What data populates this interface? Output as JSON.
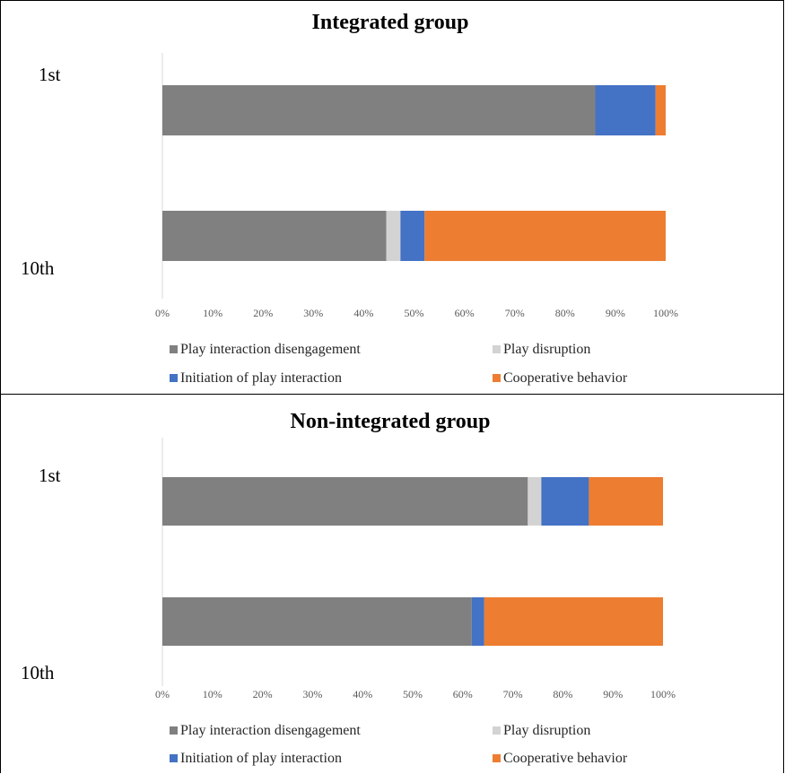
{
  "chart_data": [
    {
      "type": "bar",
      "orientation": "horizontal",
      "stacked": "percent",
      "title": "Integrated group",
      "categories": [
        "1st",
        "10th"
      ],
      "series": [
        {
          "name": "Play interaction disengagement",
          "color": "#808080",
          "values": [
            86,
            44.5
          ]
        },
        {
          "name": "Play disruption",
          "color": "#d3d3d3",
          "values": [
            0,
            2.8
          ]
        },
        {
          "name": "Initiation of play interaction",
          "color": "#4472c4",
          "values": [
            12,
            4.8
          ]
        },
        {
          "name": "Cooperative behavior",
          "color": "#ed7d31",
          "values": [
            2,
            47.9
          ]
        }
      ],
      "xlim": [
        0,
        100
      ],
      "xticks": [
        "0%",
        "10%",
        "20%",
        "30%",
        "40%",
        "50%",
        "60%",
        "70%",
        "80%",
        "90%",
        "100%"
      ],
      "grid": false,
      "legend_position": "bottom"
    },
    {
      "type": "bar",
      "orientation": "horizontal",
      "stacked": "percent",
      "title": "Non-integrated group",
      "categories": [
        "1st",
        "10th"
      ],
      "series": [
        {
          "name": "Play interaction disengagement",
          "color": "#808080",
          "values": [
            73,
            61.8
          ]
        },
        {
          "name": "Play disruption",
          "color": "#d3d3d3",
          "values": [
            2.7,
            0
          ]
        },
        {
          "name": "Initiation of play interaction",
          "color": "#4472c4",
          "values": [
            9.5,
            2.5
          ]
        },
        {
          "name": "Cooperative behavior",
          "color": "#ed7d31",
          "values": [
            14.8,
            35.7
          ]
        }
      ],
      "xlim": [
        0,
        100
      ],
      "xticks": [
        "0%",
        "10%",
        "20%",
        "30%",
        "40%",
        "50%",
        "60%",
        "70%",
        "80%",
        "90%",
        "100%"
      ],
      "grid": false,
      "legend_position": "bottom"
    }
  ]
}
